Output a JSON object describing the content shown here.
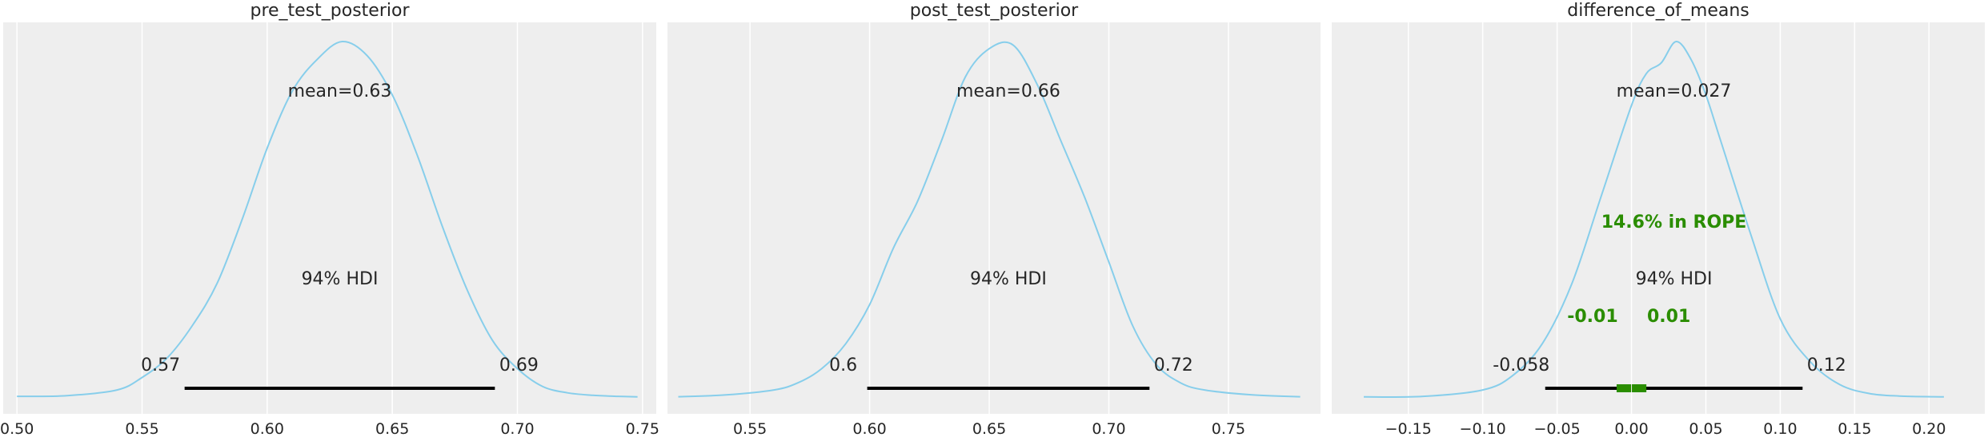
{
  "theme": {
    "panel_bg": "#eeeeee",
    "grid": "#ffffff",
    "curve": "#87ceeb",
    "hdi_bar": "#000000",
    "rope_color": "#2a8d00"
  },
  "chart_data": [
    {
      "type": "line",
      "title": "pre_test_posterior",
      "xlim": [
        0.4945,
        0.7555
      ],
      "ylim": [
        0,
        1.0
      ],
      "xticks": [
        0.5,
        0.55,
        0.6,
        0.65,
        0.7,
        0.75
      ],
      "xtick_labels": [
        "0.50",
        "0.55",
        "0.60",
        "0.65",
        "0.70",
        "0.75"
      ],
      "grid": true,
      "x": [
        0.5,
        0.52,
        0.54,
        0.55,
        0.56,
        0.57,
        0.58,
        0.59,
        0.6,
        0.61,
        0.62,
        0.63,
        0.64,
        0.65,
        0.66,
        0.67,
        0.68,
        0.69,
        0.7,
        0.71,
        0.72,
        0.73,
        0.74,
        0.748
      ],
      "y": [
        0.002,
        0.004,
        0.02,
        0.055,
        0.11,
        0.2,
        0.32,
        0.5,
        0.7,
        0.86,
        0.95,
        1.0,
        0.96,
        0.85,
        0.68,
        0.48,
        0.3,
        0.16,
        0.08,
        0.03,
        0.012,
        0.005,
        0.002,
        0.0005
      ],
      "mean_label": "mean=0.63",
      "hdi_label": "94% HDI",
      "hdi": [
        0.567,
        0.691
      ],
      "hdi_low_label": "0.57",
      "hdi_high_label": "0.69"
    },
    {
      "type": "line",
      "title": "post_test_posterior",
      "xlim": [
        0.5155,
        0.7885
      ],
      "ylim": [
        0,
        1.0
      ],
      "xticks": [
        0.55,
        0.6,
        0.65,
        0.7,
        0.75
      ],
      "xtick_labels": [
        "0.55",
        "0.60",
        "0.65",
        "0.70",
        "0.75"
      ],
      "grid": true,
      "x": [
        0.52,
        0.54,
        0.56,
        0.57,
        0.58,
        0.59,
        0.6,
        0.61,
        0.62,
        0.63,
        0.64,
        0.65,
        0.66,
        0.67,
        0.68,
        0.69,
        0.7,
        0.71,
        0.72,
        0.73,
        0.74,
        0.76,
        0.78
      ],
      "y": [
        0.001,
        0.006,
        0.02,
        0.04,
        0.08,
        0.15,
        0.26,
        0.42,
        0.55,
        0.72,
        0.9,
        0.98,
        0.99,
        0.88,
        0.72,
        0.56,
        0.38,
        0.2,
        0.09,
        0.04,
        0.02,
        0.006,
        0.001
      ],
      "mean_label": "mean=0.66",
      "hdi_label": "94% HDI",
      "hdi": [
        0.599,
        0.717
      ],
      "hdi_low_label": "0.6",
      "hdi_high_label": "0.72"
    },
    {
      "type": "line",
      "title": "difference_of_means",
      "xlim": [
        -0.2015,
        0.2375
      ],
      "ylim": [
        0,
        1.0
      ],
      "xticks": [
        -0.15,
        -0.1,
        -0.05,
        0.0,
        0.05,
        0.1,
        0.15,
        0.2
      ],
      "xtick_labels": [
        "−0.15",
        "−0.10",
        "−0.05",
        "0.00",
        "0.05",
        "0.10",
        "0.15",
        "0.20"
      ],
      "grid": true,
      "x": [
        -0.18,
        -0.14,
        -0.1,
        -0.08,
        -0.06,
        -0.04,
        -0.02,
        0.0,
        0.01,
        0.02,
        0.03,
        0.04,
        0.05,
        0.06,
        0.08,
        0.1,
        0.12,
        0.14,
        0.16,
        0.18,
        0.21
      ],
      "y": [
        0.0005,
        0.002,
        0.02,
        0.06,
        0.15,
        0.32,
        0.57,
        0.82,
        0.91,
        0.94,
        1.0,
        0.95,
        0.85,
        0.72,
        0.46,
        0.22,
        0.1,
        0.035,
        0.01,
        0.003,
        0.0005
      ],
      "mean_label": "mean=0.027",
      "hdi_label": "94% HDI",
      "hdi": [
        -0.058,
        0.115
      ],
      "hdi_low_label": "-0.058",
      "hdi_high_label": "0.12",
      "rope": [
        -0.01,
        0.01
      ],
      "rope_label": "14.6% in ROPE",
      "rope_low_label": "-0.01",
      "rope_high_label": "0.01"
    }
  ]
}
